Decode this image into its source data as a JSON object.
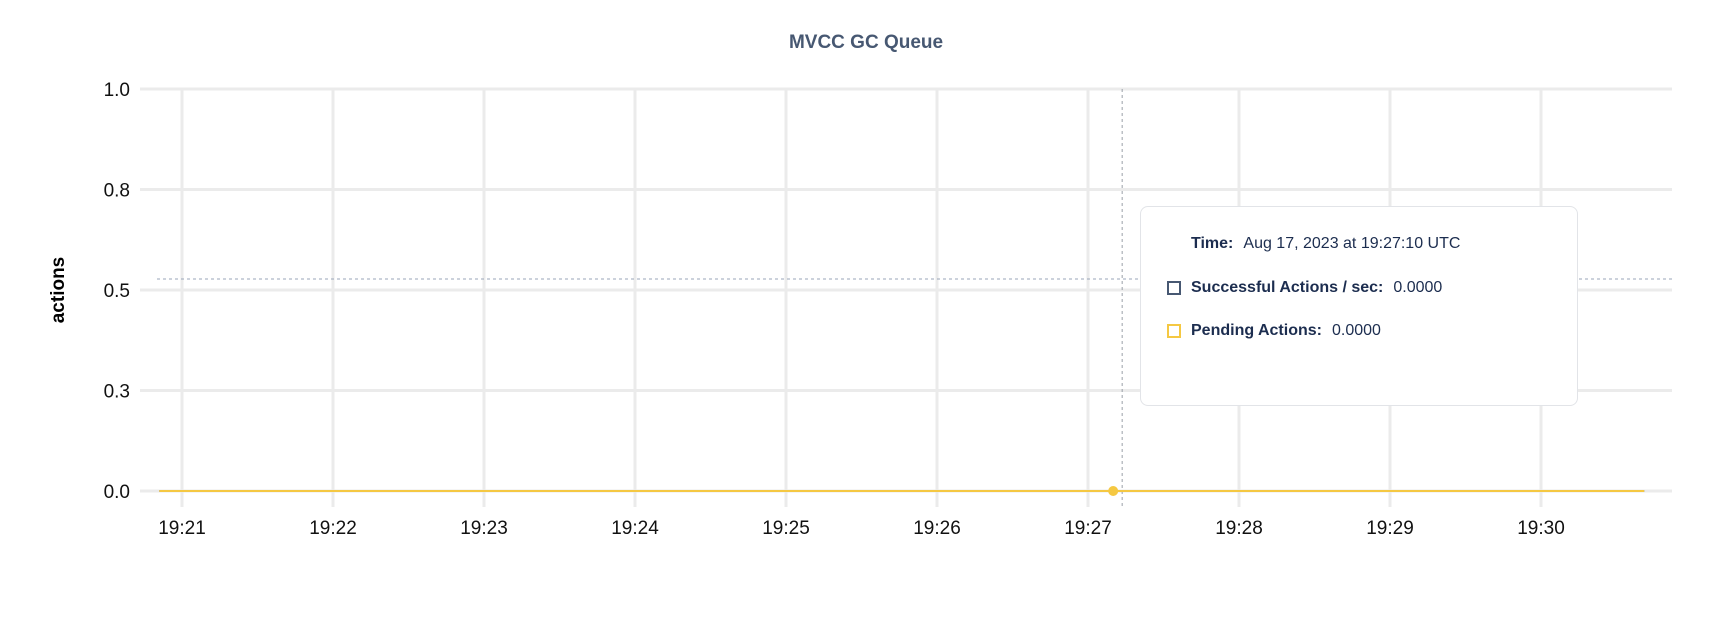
{
  "chart_data": {
    "type": "line",
    "title": "MVCC GC Queue",
    "ylabel": "actions",
    "xlabel": "",
    "ylim": [
      0,
      1
    ],
    "y_ticks": [
      0,
      0.25,
      0.5,
      0.75,
      1
    ],
    "y_tick_labels": [
      "0.0",
      "0.3",
      "0.5",
      "0.8",
      "1.0"
    ],
    "x_ticks": [
      "19:21",
      "19:22",
      "19:23",
      "19:24",
      "19:25",
      "19:26",
      "19:27",
      "19:28",
      "19:29",
      "19:30"
    ],
    "x_range": [
      "19:20:51",
      "19:30:41"
    ],
    "grid": true,
    "series": [
      {
        "name": "Successful Actions / sec",
        "color": "#475872",
        "x": [
          "19:20:51",
          "19:30:41"
        ],
        "values": [
          0,
          0
        ]
      },
      {
        "name": "Pending Actions",
        "color": "#f5c842",
        "x": [
          "19:20:51",
          "19:30:41"
        ],
        "values": [
          0,
          0
        ]
      }
    ],
    "hover": {
      "time": "19:27:10"
    }
  },
  "tooltip": {
    "time_label": "Time:",
    "time_value": "Aug 17, 2023 at 19:27:10 UTC",
    "rows": [
      {
        "label": "Successful Actions / sec:",
        "value": "0.0000",
        "color": "#475872"
      },
      {
        "label": "Pending Actions:",
        "value": "0.0000",
        "color": "#f5c842"
      }
    ]
  }
}
